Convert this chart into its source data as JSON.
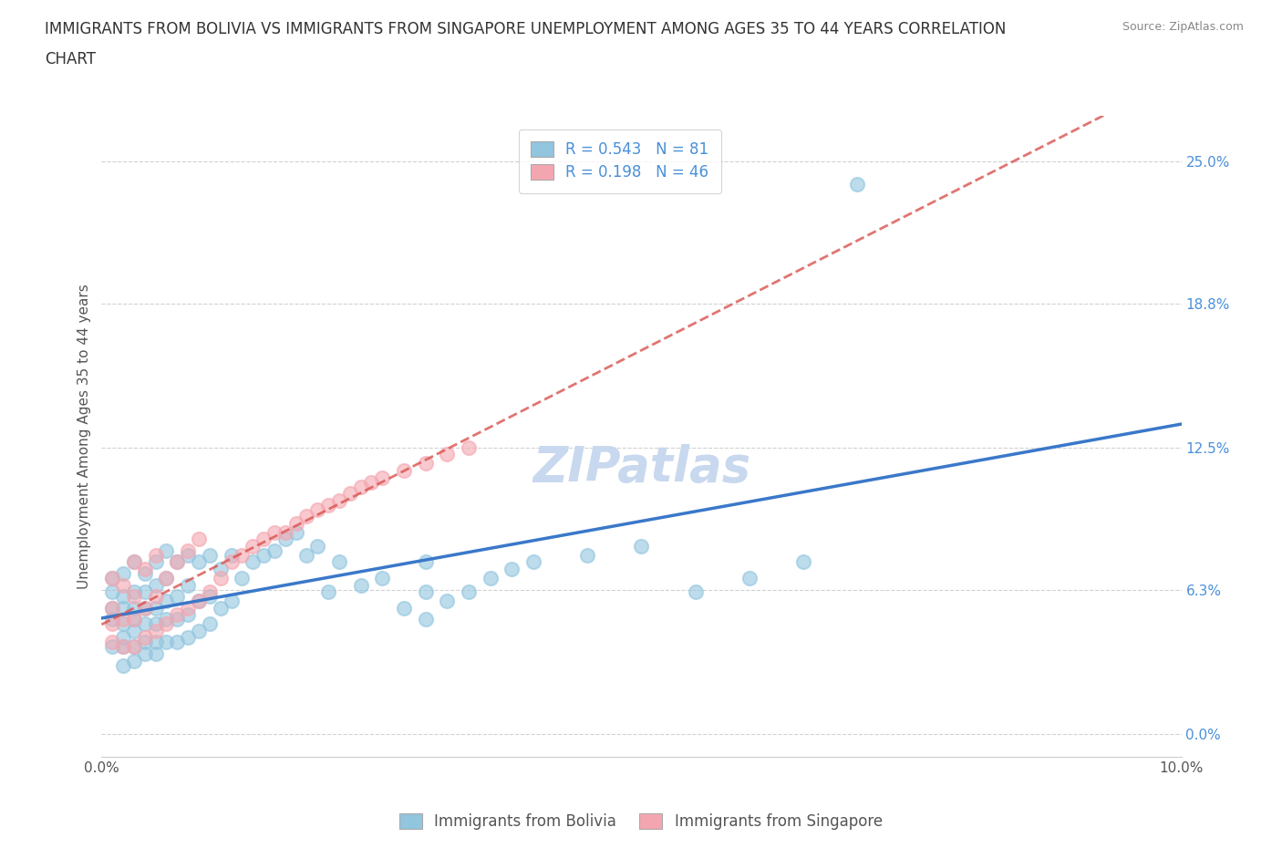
{
  "title_line1": "IMMIGRANTS FROM BOLIVIA VS IMMIGRANTS FROM SINGAPORE UNEMPLOYMENT AMONG AGES 35 TO 44 YEARS CORRELATION",
  "title_line2": "CHART",
  "source": "Source: ZipAtlas.com",
  "ylabel": "Unemployment Among Ages 35 to 44 years",
  "xlim": [
    0.0,
    0.1
  ],
  "ylim": [
    -0.01,
    0.27
  ],
  "yticks": [
    0.0,
    0.063,
    0.125,
    0.188,
    0.25
  ],
  "ytick_labels": [
    "0.0%",
    "6.3%",
    "12.5%",
    "18.8%",
    "25.0%"
  ],
  "xticks": [
    0.0,
    0.1
  ],
  "xtick_labels": [
    "0.0%",
    "10.0%"
  ],
  "legend_label1": "Immigrants from Bolivia",
  "legend_label2": "Immigrants from Singapore",
  "R1": 0.543,
  "N1": 81,
  "R2": 0.198,
  "N2": 46,
  "color1": "#92c5de",
  "color2": "#f4a6b0",
  "line1_color": "#3a78c9",
  "line2_color": "#d9534f",
  "watermark": "ZIPatlas",
  "bolivia_x": [
    0.001,
    0.001,
    0.001,
    0.001,
    0.001,
    0.002,
    0.002,
    0.002,
    0.002,
    0.002,
    0.002,
    0.002,
    0.003,
    0.003,
    0.003,
    0.003,
    0.003,
    0.003,
    0.003,
    0.004,
    0.004,
    0.004,
    0.004,
    0.004,
    0.004,
    0.005,
    0.005,
    0.005,
    0.005,
    0.005,
    0.005,
    0.006,
    0.006,
    0.006,
    0.006,
    0.006,
    0.007,
    0.007,
    0.007,
    0.007,
    0.008,
    0.008,
    0.008,
    0.008,
    0.009,
    0.009,
    0.009,
    0.01,
    0.01,
    0.01,
    0.011,
    0.011,
    0.012,
    0.012,
    0.013,
    0.014,
    0.015,
    0.016,
    0.017,
    0.018,
    0.019,
    0.02,
    0.021,
    0.022,
    0.024,
    0.026,
    0.028,
    0.03,
    0.03,
    0.03,
    0.032,
    0.034,
    0.036,
    0.038,
    0.04,
    0.045,
    0.05,
    0.055,
    0.06,
    0.065,
    0.07
  ],
  "bolivia_y": [
    0.038,
    0.05,
    0.055,
    0.062,
    0.068,
    0.03,
    0.038,
    0.042,
    0.048,
    0.055,
    0.06,
    0.07,
    0.032,
    0.038,
    0.045,
    0.05,
    0.055,
    0.062,
    0.075,
    0.035,
    0.04,
    0.048,
    0.055,
    0.062,
    0.07,
    0.035,
    0.04,
    0.048,
    0.055,
    0.065,
    0.075,
    0.04,
    0.05,
    0.058,
    0.068,
    0.08,
    0.04,
    0.05,
    0.06,
    0.075,
    0.042,
    0.052,
    0.065,
    0.078,
    0.045,
    0.058,
    0.075,
    0.048,
    0.06,
    0.078,
    0.055,
    0.072,
    0.058,
    0.078,
    0.068,
    0.075,
    0.078,
    0.08,
    0.085,
    0.088,
    0.078,
    0.082,
    0.062,
    0.075,
    0.065,
    0.068,
    0.055,
    0.05,
    0.062,
    0.075,
    0.058,
    0.062,
    0.068,
    0.072,
    0.075,
    0.078,
    0.082,
    0.062,
    0.068,
    0.075,
    0.24
  ],
  "singapore_x": [
    0.001,
    0.001,
    0.001,
    0.001,
    0.002,
    0.002,
    0.002,
    0.003,
    0.003,
    0.003,
    0.003,
    0.004,
    0.004,
    0.004,
    0.005,
    0.005,
    0.005,
    0.006,
    0.006,
    0.007,
    0.007,
    0.008,
    0.008,
    0.009,
    0.009,
    0.01,
    0.011,
    0.012,
    0.013,
    0.014,
    0.015,
    0.016,
    0.017,
    0.018,
    0.019,
    0.02,
    0.021,
    0.022,
    0.023,
    0.024,
    0.025,
    0.026,
    0.028,
    0.03,
    0.032,
    0.034
  ],
  "singapore_y": [
    0.04,
    0.048,
    0.055,
    0.068,
    0.038,
    0.05,
    0.065,
    0.038,
    0.05,
    0.06,
    0.075,
    0.042,
    0.055,
    0.072,
    0.045,
    0.06,
    0.078,
    0.048,
    0.068,
    0.052,
    0.075,
    0.055,
    0.08,
    0.058,
    0.085,
    0.062,
    0.068,
    0.075,
    0.078,
    0.082,
    0.085,
    0.088,
    0.088,
    0.092,
    0.095,
    0.098,
    0.1,
    0.102,
    0.105,
    0.108,
    0.11,
    0.112,
    0.115,
    0.118,
    0.122,
    0.125
  ],
  "title_fontsize": 12,
  "axis_label_fontsize": 11,
  "tick_fontsize": 11,
  "legend_fontsize": 12,
  "watermark_fontsize": 38,
  "watermark_color": "#c8d8ee",
  "background_color": "#ffffff",
  "grid_color": "#cccccc"
}
